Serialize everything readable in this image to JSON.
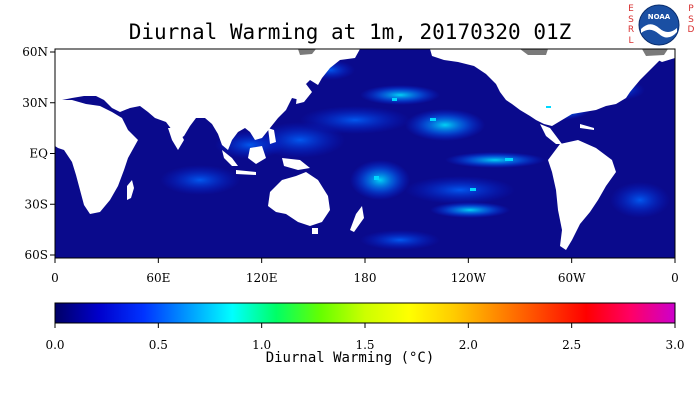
{
  "title": "Diurnal Warming at 1m, 20170320 01Z",
  "map": {
    "lat_ticks": [
      "60N",
      "30N",
      "EQ",
      "30S",
      "60S"
    ],
    "lon_ticks": [
      "0",
      "60E",
      "120E",
      "180",
      "120W",
      "60W",
      "0"
    ]
  },
  "colorbar": {
    "title": "Diurnal Warming (°C)",
    "ticks": [
      "0.0",
      "0.5",
      "1.0",
      "1.5",
      "2.0",
      "2.5",
      "3.0"
    ],
    "range": [
      0,
      3
    ],
    "colors": [
      "#000066",
      "#0000cc",
      "#0033ff",
      "#0099ff",
      "#00ffff",
      "#00ff66",
      "#66ff00",
      "#ccff00",
      "#ffff00",
      "#ffcc00",
      "#ff8800",
      "#ff4400",
      "#ff0000",
      "#ff0066",
      "#cc00cc"
    ]
  },
  "logo": {
    "left_letters": [
      "E",
      "S",
      "R",
      "L"
    ],
    "right_letters": [
      "P",
      "S",
      "D"
    ],
    "badge_text": "NOAA"
  },
  "colors": {
    "ocean": "#0a0a8c",
    "land": "#ffffff",
    "ice": "#7a7a7a",
    "accent_letters": "#d83030"
  }
}
